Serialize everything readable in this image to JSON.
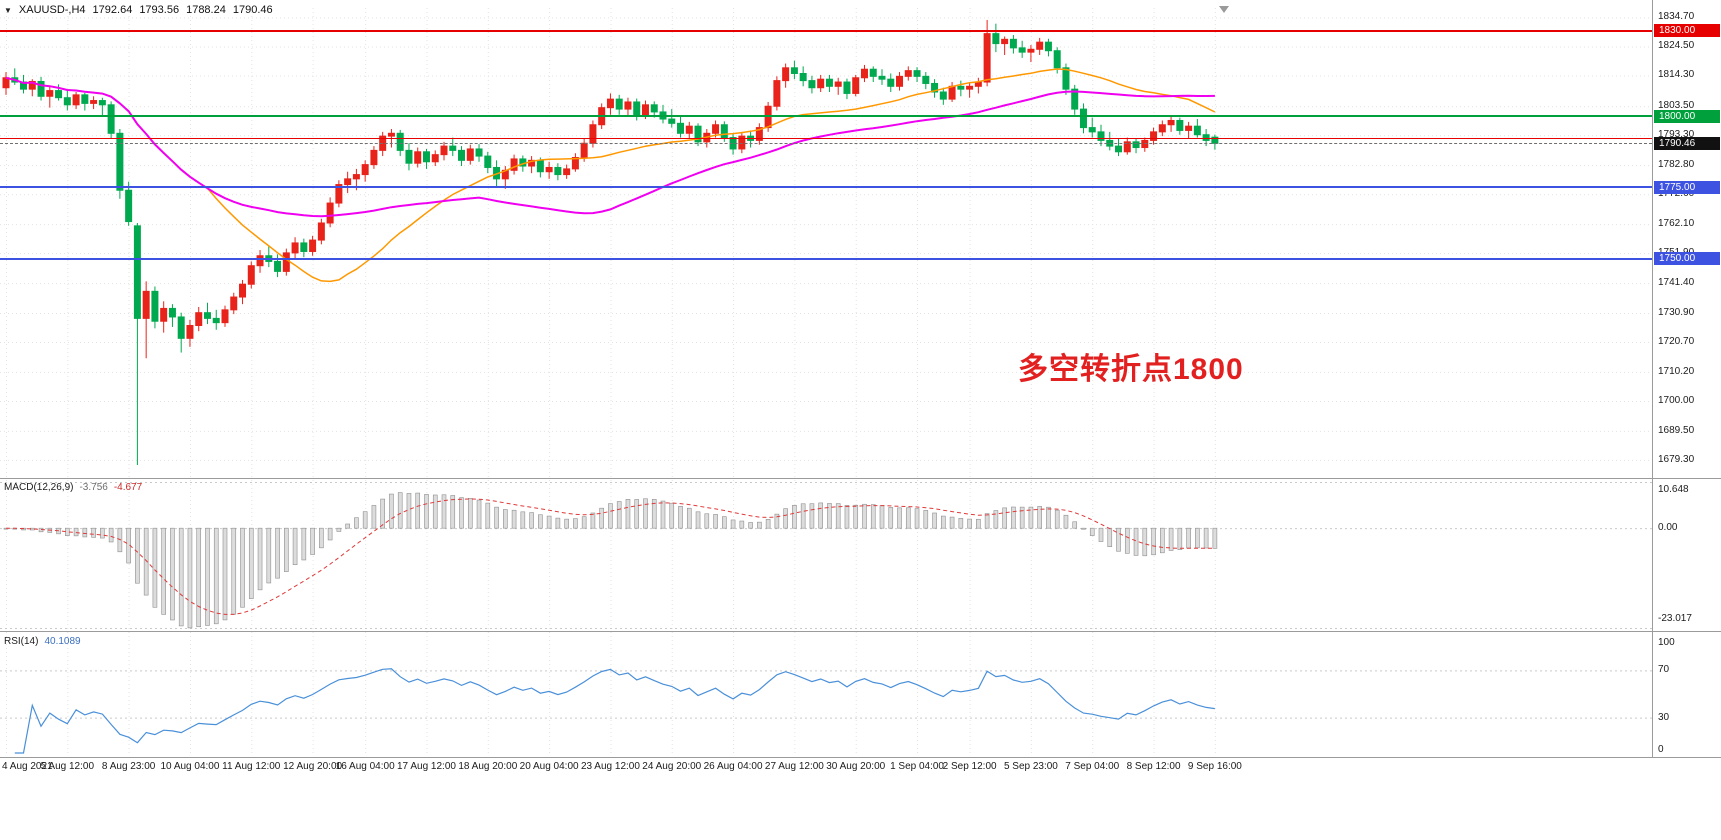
{
  "header": {
    "symbol": "XAUUSD-,H4",
    "open": "1792.64",
    "high": "1793.56",
    "low": "1788.24",
    "close": "1790.46"
  },
  "annotation": {
    "text": "多空转折点1800",
    "color": "#e32020"
  },
  "indicators": {
    "macd": {
      "label": "MACD(12,26,9)",
      "value_main": "-3.756",
      "value_signal": "-4.677",
      "axis": [
        "10.648",
        "0.00",
        "-23.017"
      ],
      "ylim": [
        -23.017,
        10.648
      ]
    },
    "rsi": {
      "label": "RSI(14)",
      "value": "40.1089",
      "axis": [
        "100",
        "70",
        "30",
        "0"
      ],
      "levels": [
        70,
        30
      ],
      "ylim": [
        0,
        100
      ]
    }
  },
  "price_axis": {
    "labels": [
      "1834.70",
      "1824.50",
      "1814.30",
      "1803.50",
      "1793.30",
      "1782.80",
      "1772.60",
      "1762.10",
      "1751.90",
      "1741.40",
      "1730.90",
      "1720.70",
      "1710.20",
      "1700.00",
      "1689.50",
      "1679.30"
    ]
  },
  "time_axis": {
    "labels": [
      "4 Aug 2021",
      "5 Aug 12:00",
      "8 Aug 23:00",
      "10 Aug 04:00",
      "11 Aug 12:00",
      "12 Aug 20:00",
      "16 Aug 04:00",
      "17 Aug 12:00",
      "18 Aug 20:00",
      "20 Aug 04:00",
      "23 Aug 12:00",
      "24 Aug 20:00",
      "26 Aug 04:00",
      "27 Aug 12:00",
      "30 Aug 20:00",
      "1 Sep 04:00",
      "2 Sep 12:00",
      "5 Sep 23:00",
      "7 Sep 04:00",
      "8 Sep 12:00",
      "9 Sep 16:00"
    ],
    "tick_indices": [
      0,
      7,
      14,
      21,
      28,
      35,
      41,
      48,
      55,
      62,
      69,
      76,
      83,
      90,
      97,
      104,
      110,
      117,
      124,
      131,
      138
    ]
  },
  "hlines": [
    {
      "value": 1830.0,
      "label": "1830.00",
      "color": "#e60000",
      "thickness": 2
    },
    {
      "value": 1800.0,
      "label": "1800.00",
      "color": "#00a13c",
      "thickness": 2
    },
    {
      "value": 1792.0,
      "label": null,
      "color": "#e60000",
      "thickness": 1
    },
    {
      "value": 1775.0,
      "label": "1775.00",
      "color": "#3d52e0",
      "thickness": 2
    },
    {
      "value": 1750.0,
      "label": "1750.00",
      "color": "#3d52e0",
      "thickness": 2
    }
  ],
  "price_line": {
    "value": 1790.46,
    "label": "1790.46",
    "badge_color": "#111111"
  },
  "colors": {
    "bull": "#e8231a",
    "bear": "#00a94f",
    "ma_fast": "#ff9800",
    "ma_slow": "#f000f0",
    "macd_hist_fill": "#dcdcdc",
    "macd_hist_stroke": "#8f8f8f",
    "macd_signal": "#e03a3a",
    "rsi_line": "#4a90d9",
    "grid": "#e3e3e3",
    "level": "#c9c9c9",
    "separator": "#9b9b9b",
    "axis_text": "#1b1b1b",
    "price_line": "#6f6f6f"
  },
  "chart_data": {
    "type": "candlestick",
    "symbol": "XAUUSD",
    "timeframe": "H4",
    "ylim": [
      1674,
      1838
    ],
    "moving_averages": [
      {
        "name": "ma-fast",
        "period": 24,
        "color": "#ff9800"
      },
      {
        "name": "ma-slow",
        "period": 55,
        "color": "#f000f0"
      }
    ],
    "candles": [
      [
        1810.0,
        1815.5,
        1807.5,
        1813.5
      ],
      [
        1813.5,
        1816.8,
        1811.0,
        1812.0
      ],
      [
        1812.0,
        1814.5,
        1808.0,
        1809.5
      ],
      [
        1809.5,
        1813.0,
        1807.0,
        1812.2
      ],
      [
        1812.2,
        1813.8,
        1805.5,
        1807.0
      ],
      [
        1807.0,
        1810.5,
        1803.0,
        1809.0
      ],
      [
        1809.0,
        1811.2,
        1805.5,
        1806.5
      ],
      [
        1806.5,
        1809.0,
        1802.0,
        1804.0
      ],
      [
        1804.0,
        1808.5,
        1802.5,
        1807.5
      ],
      [
        1807.5,
        1808.2,
        1802.0,
        1804.5
      ],
      [
        1804.5,
        1807.0,
        1802.5,
        1805.5
      ],
      [
        1805.5,
        1806.5,
        1800.0,
        1804.0
      ],
      [
        1804.0,
        1805.2,
        1792.0,
        1794.0
      ],
      [
        1794.0,
        1795.5,
        1771.0,
        1774.0
      ],
      [
        1774.0,
        1777.0,
        1761.5,
        1763.0
      ],
      [
        1761.5,
        1762.5,
        1677.5,
        1729.0
      ],
      [
        1729.0,
        1742.0,
        1715.0,
        1738.5
      ],
      [
        1738.5,
        1740.2,
        1725.5,
        1728.0
      ],
      [
        1728.0,
        1735.0,
        1724.0,
        1732.5
      ],
      [
        1732.5,
        1734.0,
        1726.0,
        1729.5
      ],
      [
        1729.5,
        1731.0,
        1717.0,
        1722.0
      ],
      [
        1722.0,
        1728.5,
        1719.0,
        1726.5
      ],
      [
        1726.5,
        1733.0,
        1724.5,
        1731.0
      ],
      [
        1731.0,
        1734.5,
        1727.0,
        1729.0
      ],
      [
        1729.0,
        1732.0,
        1725.0,
        1727.5
      ],
      [
        1727.5,
        1733.5,
        1726.0,
        1732.0
      ],
      [
        1732.0,
        1738.0,
        1730.5,
        1736.5
      ],
      [
        1736.5,
        1742.5,
        1734.0,
        1741.0
      ],
      [
        1741.0,
        1749.0,
        1739.5,
        1747.5
      ],
      [
        1747.5,
        1753.0,
        1745.0,
        1751.0
      ],
      [
        1751.0,
        1754.5,
        1747.0,
        1749.0
      ],
      [
        1749.0,
        1751.5,
        1743.5,
        1745.5
      ],
      [
        1745.5,
        1753.5,
        1744.0,
        1752.0
      ],
      [
        1752.0,
        1757.5,
        1750.0,
        1755.5
      ],
      [
        1755.5,
        1757.0,
        1750.5,
        1752.5
      ],
      [
        1752.5,
        1758.0,
        1751.0,
        1756.5
      ],
      [
        1756.5,
        1764.0,
        1755.0,
        1762.5
      ],
      [
        1762.5,
        1771.5,
        1761.0,
        1769.5
      ],
      [
        1769.5,
        1777.5,
        1768.0,
        1776.0
      ],
      [
        1776.0,
        1780.5,
        1773.0,
        1778.0
      ],
      [
        1778.0,
        1781.5,
        1774.0,
        1779.5
      ],
      [
        1779.5,
        1784.5,
        1777.0,
        1783.0
      ],
      [
        1783.0,
        1789.5,
        1781.5,
        1788.0
      ],
      [
        1788.0,
        1794.5,
        1786.0,
        1793.0
      ],
      [
        1793.0,
        1795.5,
        1789.0,
        1794.0
      ],
      [
        1794.0,
        1795.2,
        1786.0,
        1788.0
      ],
      [
        1788.0,
        1790.5,
        1781.0,
        1783.5
      ],
      [
        1783.5,
        1789.0,
        1782.0,
        1787.5
      ],
      [
        1787.5,
        1788.5,
        1781.5,
        1784.0
      ],
      [
        1784.0,
        1788.0,
        1782.5,
        1786.5
      ],
      [
        1786.5,
        1791.0,
        1784.5,
        1789.5
      ],
      [
        1789.5,
        1792.5,
        1786.0,
        1788.0
      ],
      [
        1788.0,
        1789.5,
        1782.5,
        1784.5
      ],
      [
        1784.5,
        1790.0,
        1783.0,
        1788.5
      ],
      [
        1788.5,
        1790.2,
        1784.0,
        1786.0
      ],
      [
        1786.0,
        1787.5,
        1780.0,
        1782.0
      ],
      [
        1782.0,
        1784.5,
        1775.5,
        1778.0
      ],
      [
        1778.0,
        1782.5,
        1774.5,
        1781.0
      ],
      [
        1781.0,
        1786.5,
        1779.5,
        1785.0
      ],
      [
        1785.0,
        1786.2,
        1780.5,
        1782.5
      ],
      [
        1782.5,
        1786.0,
        1780.0,
        1784.5
      ],
      [
        1784.5,
        1785.5,
        1778.5,
        1780.5
      ],
      [
        1780.5,
        1784.0,
        1778.0,
        1782.0
      ],
      [
        1782.0,
        1783.5,
        1777.5,
        1779.5
      ],
      [
        1779.5,
        1783.0,
        1778.0,
        1781.5
      ],
      [
        1781.5,
        1787.0,
        1780.5,
        1785.5
      ],
      [
        1785.5,
        1792.0,
        1784.0,
        1790.5
      ],
      [
        1790.5,
        1798.5,
        1789.0,
        1797.0
      ],
      [
        1797.0,
        1804.5,
        1795.5,
        1803.0
      ],
      [
        1803.0,
        1808.0,
        1800.5,
        1806.0
      ],
      [
        1806.0,
        1807.5,
        1800.5,
        1802.5
      ],
      [
        1802.5,
        1806.5,
        1800.0,
        1805.0
      ],
      [
        1805.0,
        1806.2,
        1798.5,
        1800.5
      ],
      [
        1800.5,
        1805.5,
        1799.0,
        1804.0
      ],
      [
        1804.0,
        1805.2,
        1799.5,
        1801.5
      ],
      [
        1801.5,
        1804.0,
        1797.5,
        1799.0
      ],
      [
        1799.0,
        1802.5,
        1796.0,
        1797.5
      ],
      [
        1797.5,
        1800.0,
        1792.5,
        1794.0
      ],
      [
        1794.0,
        1798.0,
        1792.0,
        1796.5
      ],
      [
        1796.5,
        1797.5,
        1789.5,
        1791.0
      ],
      [
        1791.0,
        1795.5,
        1789.0,
        1794.0
      ],
      [
        1794.0,
        1798.5,
        1792.5,
        1797.0
      ],
      [
        1797.0,
        1798.2,
        1791.0,
        1792.5
      ],
      [
        1792.5,
        1794.0,
        1786.5,
        1788.5
      ],
      [
        1788.5,
        1794.5,
        1787.0,
        1793.0
      ],
      [
        1793.0,
        1795.0,
        1789.0,
        1791.5
      ],
      [
        1791.5,
        1797.5,
        1790.0,
        1796.0
      ],
      [
        1796.0,
        1805.0,
        1794.5,
        1803.5
      ],
      [
        1803.5,
        1814.0,
        1802.0,
        1812.5
      ],
      [
        1812.5,
        1818.5,
        1810.0,
        1817.0
      ],
      [
        1817.0,
        1819.5,
        1813.0,
        1815.0
      ],
      [
        1815.0,
        1817.5,
        1810.5,
        1812.5
      ],
      [
        1812.5,
        1814.2,
        1808.0,
        1810.0
      ],
      [
        1810.0,
        1814.5,
        1808.5,
        1813.0
      ],
      [
        1813.0,
        1814.5,
        1808.5,
        1810.5
      ],
      [
        1810.5,
        1813.5,
        1807.5,
        1812.0
      ],
      [
        1812.0,
        1813.2,
        1806.0,
        1808.0
      ],
      [
        1808.0,
        1814.5,
        1807.0,
        1813.5
      ],
      [
        1813.5,
        1818.0,
        1812.0,
        1816.5
      ],
      [
        1816.5,
        1817.5,
        1812.0,
        1814.0
      ],
      [
        1814.0,
        1816.5,
        1811.0,
        1813.0
      ],
      [
        1813.0,
        1815.0,
        1808.5,
        1810.5
      ],
      [
        1810.5,
        1815.5,
        1809.0,
        1814.0
      ],
      [
        1814.0,
        1817.5,
        1812.5,
        1816.0
      ],
      [
        1816.0,
        1817.2,
        1812.0,
        1814.0
      ],
      [
        1814.0,
        1815.5,
        1809.5,
        1811.5
      ],
      [
        1811.5,
        1813.0,
        1806.5,
        1808.5
      ],
      [
        1808.5,
        1810.0,
        1804.0,
        1806.0
      ],
      [
        1806.0,
        1812.0,
        1805.0,
        1810.5
      ],
      [
        1810.5,
        1812.5,
        1807.0,
        1809.5
      ],
      [
        1809.5,
        1812.0,
        1806.5,
        1810.5
      ],
      [
        1810.5,
        1813.5,
        1808.0,
        1812.0
      ],
      [
        1812.0,
        1833.8,
        1810.5,
        1829.0
      ],
      [
        1829.0,
        1832.5,
        1822.5,
        1825.5
      ],
      [
        1825.5,
        1828.0,
        1821.5,
        1827.0
      ],
      [
        1827.0,
        1828.5,
        1822.0,
        1824.0
      ],
      [
        1824.0,
        1826.5,
        1820.5,
        1822.5
      ],
      [
        1822.5,
        1825.0,
        1819.0,
        1823.5
      ],
      [
        1823.5,
        1827.5,
        1821.5,
        1826.0
      ],
      [
        1826.0,
        1827.2,
        1821.0,
        1823.0
      ],
      [
        1823.0,
        1824.2,
        1815.0,
        1817.0
      ],
      [
        1817.0,
        1818.5,
        1807.5,
        1809.5
      ],
      [
        1809.5,
        1811.0,
        1800.5,
        1802.5
      ],
      [
        1802.5,
        1804.5,
        1794.0,
        1796.0
      ],
      [
        1796.0,
        1799.5,
        1792.5,
        1794.5
      ],
      [
        1794.5,
        1797.0,
        1789.5,
        1791.5
      ],
      [
        1791.5,
        1794.5,
        1788.0,
        1789.5
      ],
      [
        1789.5,
        1792.0,
        1786.0,
        1787.5
      ],
      [
        1787.5,
        1792.5,
        1786.5,
        1791.0
      ],
      [
        1791.0,
        1792.2,
        1787.0,
        1789.0
      ],
      [
        1789.0,
        1792.5,
        1787.5,
        1791.5
      ],
      [
        1791.5,
        1796.0,
        1790.0,
        1794.5
      ],
      [
        1794.5,
        1798.5,
        1793.0,
        1797.0
      ],
      [
        1797.0,
        1800.2,
        1794.5,
        1798.5
      ],
      [
        1798.5,
        1799.5,
        1793.5,
        1795.0
      ],
      [
        1795.0,
        1798.0,
        1792.0,
        1796.5
      ],
      [
        1796.5,
        1799.0,
        1792.5,
        1793.5
      ],
      [
        1793.5,
        1795.5,
        1789.5,
        1791.5
      ],
      [
        1792.64,
        1793.56,
        1788.24,
        1790.46
      ]
    ]
  }
}
